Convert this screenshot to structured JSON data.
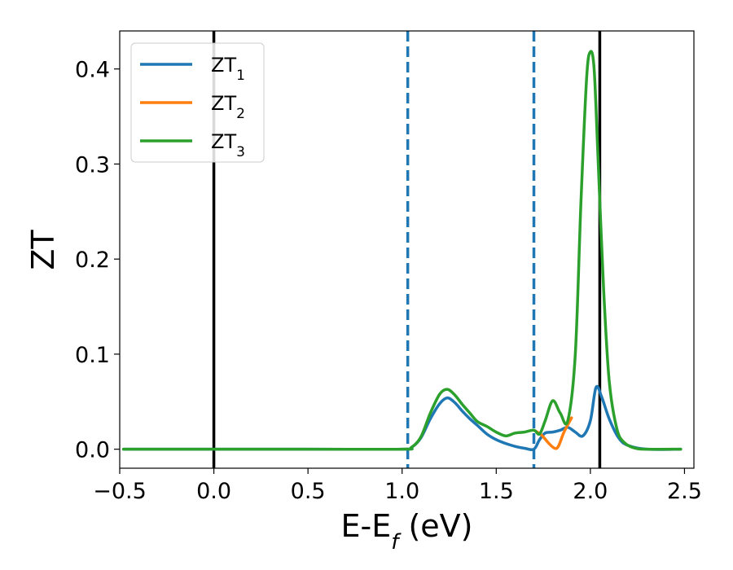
{
  "chart_data": {
    "type": "line",
    "title": "",
    "xlabel": "E-E",
    "xlabel_sub": "f",
    "xlabel_unit": " (eV)",
    "ylabel": "ZT",
    "xlim": [
      -0.5,
      2.55
    ],
    "ylim": [
      -0.02,
      0.44
    ],
    "xticks": [
      -0.5,
      0.0,
      0.5,
      1.0,
      1.5,
      2.0,
      2.5
    ],
    "xtick_labels": [
      "−0.5",
      "0.0",
      "0.5",
      "1.0",
      "1.5",
      "2.0",
      "2.5"
    ],
    "yticks": [
      0.0,
      0.1,
      0.2,
      0.3,
      0.4
    ],
    "ytick_labels": [
      "0.0",
      "0.1",
      "0.2",
      "0.3",
      "0.4"
    ],
    "grid": false,
    "legend_position": "top-left",
    "vlines": [
      {
        "x": 0.0,
        "color": "#000000",
        "style": "solid"
      },
      {
        "x": 2.05,
        "color": "#000000",
        "style": "solid"
      },
      {
        "x": 1.03,
        "color": "#1f77b4",
        "style": "dashed"
      },
      {
        "x": 1.7,
        "color": "#1f77b4",
        "style": "dashed"
      }
    ],
    "series": [
      {
        "name": "ZT",
        "sub": "1",
        "color": "#1f77b4",
        "x": [
          -0.48,
          0.5,
          1.0,
          1.05,
          1.1,
          1.15,
          1.2,
          1.24,
          1.28,
          1.32,
          1.36,
          1.4,
          1.45,
          1.5,
          1.55,
          1.6,
          1.65,
          1.7,
          1.73,
          1.76,
          1.8,
          1.84,
          1.88,
          1.92,
          1.96,
          2.0,
          2.03,
          2.06,
          2.1,
          2.15,
          2.2,
          2.3,
          2.48
        ],
        "y": [
          0.0,
          0.0,
          0.0,
          0.002,
          0.012,
          0.032,
          0.048,
          0.054,
          0.049,
          0.04,
          0.032,
          0.025,
          0.016,
          0.01,
          0.006,
          0.003,
          0.001,
          0.0,
          0.01,
          0.017,
          0.018,
          0.02,
          0.023,
          0.018,
          0.014,
          0.03,
          0.065,
          0.055,
          0.032,
          0.012,
          0.004,
          0.0,
          0.0
        ]
      },
      {
        "name": "ZT",
        "sub": "2",
        "color": "#ff7f0e",
        "x": [
          1.7,
          1.74,
          1.78,
          1.81,
          1.83,
          1.86,
          1.9
        ],
        "y": [
          0.02,
          0.015,
          0.006,
          0.001,
          0.003,
          0.018,
          0.033
        ]
      },
      {
        "name": "ZT",
        "sub": "3",
        "color": "#2ca02c",
        "x": [
          -0.48,
          0.5,
          1.0,
          1.05,
          1.1,
          1.15,
          1.2,
          1.24,
          1.28,
          1.32,
          1.36,
          1.4,
          1.45,
          1.5,
          1.55,
          1.6,
          1.65,
          1.7,
          1.73,
          1.76,
          1.8,
          1.84,
          1.88,
          1.92,
          1.95,
          1.98,
          2.0,
          2.02,
          2.04,
          2.07,
          2.1,
          2.14,
          2.18,
          2.24,
          2.3,
          2.48
        ],
        "y": [
          0.0,
          0.0,
          0.0,
          0.002,
          0.013,
          0.038,
          0.058,
          0.063,
          0.057,
          0.047,
          0.038,
          0.029,
          0.024,
          0.018,
          0.014,
          0.017,
          0.018,
          0.02,
          0.016,
          0.03,
          0.051,
          0.038,
          0.03,
          0.1,
          0.26,
          0.39,
          0.418,
          0.4,
          0.31,
          0.17,
          0.072,
          0.022,
          0.007,
          0.001,
          0.0,
          0.0
        ]
      }
    ]
  }
}
